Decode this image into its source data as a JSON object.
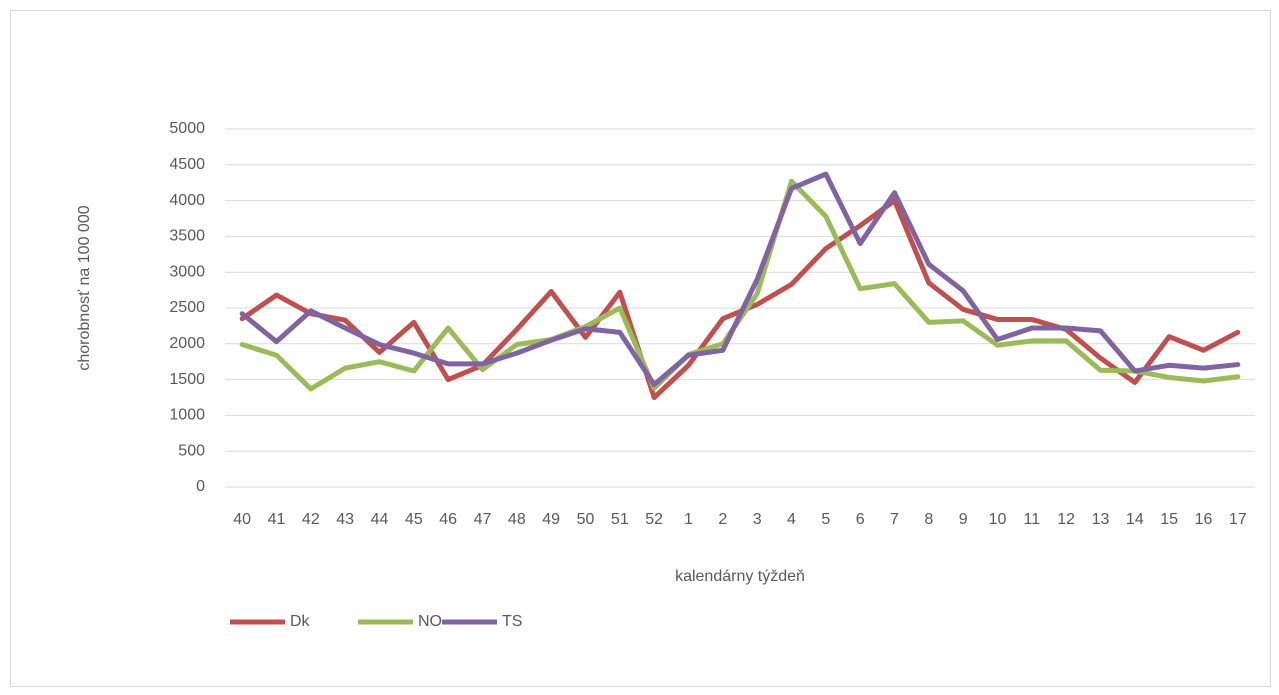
{
  "chart_data": {
    "type": "line",
    "x_label": "kalendárny týždeň",
    "y_label": "chorobnosť na 100 000",
    "categories": [
      "40",
      "41",
      "42",
      "43",
      "44",
      "45",
      "46",
      "47",
      "48",
      "49",
      "50",
      "51",
      "52",
      "1",
      "2",
      "3",
      "4",
      "5",
      "6",
      "7",
      "8",
      "9",
      "10",
      "11",
      "12",
      "13",
      "14",
      "15",
      "16",
      "17"
    ],
    "series": [
      {
        "name": "Dk",
        "color": "#c0504d",
        "values": [
          2350,
          2680,
          2420,
          2330,
          1880,
          2300,
          1500,
          1700,
          2200,
          2730,
          2090,
          2720,
          1250,
          1700,
          2350,
          2550,
          2830,
          3330,
          3650,
          4000,
          2850,
          2480,
          2340,
          2340,
          2200,
          1800,
          1460,
          2100,
          1910,
          2160
        ]
      },
      {
        "name": "NO",
        "color": "#9bbb59",
        "values": [
          1990,
          1840,
          1370,
          1660,
          1750,
          1620,
          2220,
          1640,
          1990,
          2060,
          2240,
          2500,
          1380,
          1850,
          2000,
          2700,
          4270,
          3780,
          2770,
          2840,
          2300,
          2320,
          1980,
          2040,
          2040,
          1630,
          1620,
          1530,
          1480,
          1540
        ]
      },
      {
        "name": "TS",
        "color": "#8064a2",
        "values": [
          2420,
          2030,
          2460,
          2220,
          1990,
          1870,
          1720,
          1720,
          1870,
          2050,
          2210,
          2160,
          1430,
          1840,
          1910,
          2900,
          4170,
          4370,
          3400,
          4110,
          3110,
          2740,
          2060,
          2220,
          2220,
          2180,
          1620,
          1700,
          1660,
          1710
        ]
      }
    ],
    "ylim": [
      0,
      5000
    ],
    "yticks": [
      0,
      500,
      1000,
      1500,
      2000,
      2500,
      3000,
      3500,
      4000,
      4500,
      5000
    ],
    "grid": true,
    "legend": "bottom-left"
  }
}
